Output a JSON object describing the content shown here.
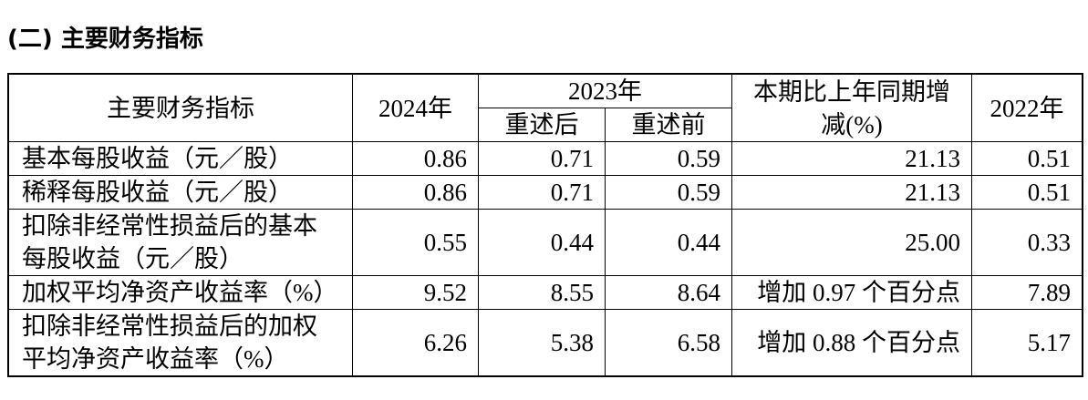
{
  "title": "(二) 主要财务指标",
  "table": {
    "header": {
      "indicator": "主要财务指标",
      "y2024": "2024年",
      "y2023": "2023年",
      "restated_after": "重述后",
      "restated_before": "重述前",
      "change": "本期比上年同期增减(%)",
      "y2022": "2022年"
    },
    "rows": [
      [
        "基本每股收益（元／股）",
        "0.86",
        "0.71",
        "0.59",
        "21.13",
        "0.51"
      ],
      [
        "稀释每股收益（元／股）",
        "0.86",
        "0.71",
        "0.59",
        "21.13",
        "0.51"
      ],
      [
        "扣除非经常性损益后的基本每股收益（元／股）",
        "0.55",
        "0.44",
        "0.44",
        "25.00",
        "0.33"
      ],
      [
        "加权平均净资产收益率（%）",
        "9.52",
        "8.55",
        "8.64",
        "增加 0.97 个百分点",
        "7.89"
      ],
      [
        "扣除非经常性损益后的加权平均净资产收益率（%）",
        "6.26",
        "5.38",
        "6.58",
        "增加 0.88 个百分点",
        "5.17"
      ]
    ]
  }
}
